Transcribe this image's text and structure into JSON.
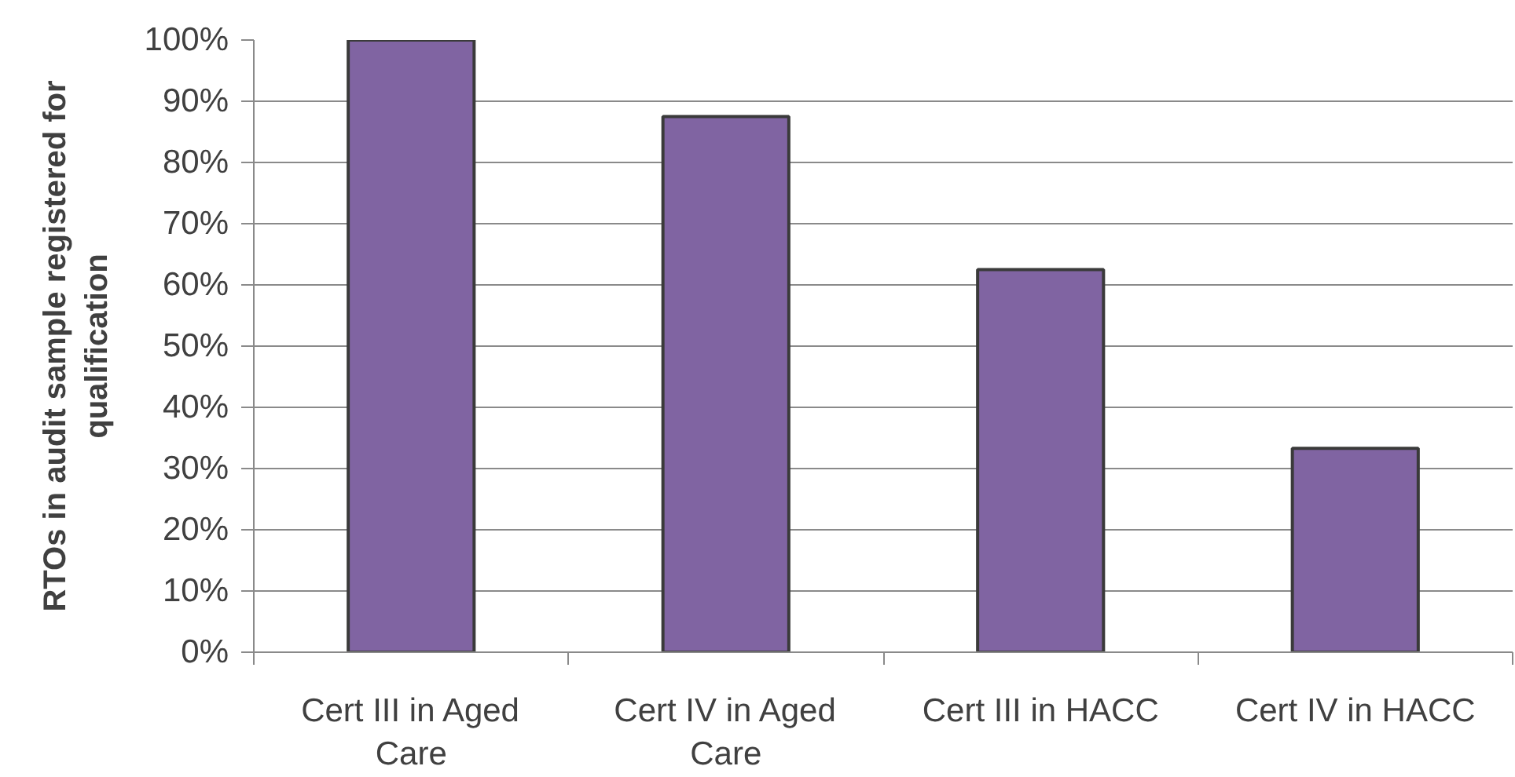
{
  "chart_data": {
    "type": "bar",
    "ylabel": "RTOs in audit sample registered for qualification",
    "categories": [
      "Cert III in Aged Care",
      "Cert IV in Aged Care",
      "Cert III in HACC",
      "Cert IV in HACC"
    ],
    "values": [
      100,
      87.5,
      62.5,
      33.3
    ],
    "color": "#8064a2",
    "ylim": [
      0,
      100
    ],
    "yticks": [
      {
        "value": 0,
        "label": "0%"
      },
      {
        "value": 10,
        "label": "10%"
      },
      {
        "value": 20,
        "label": "20%"
      },
      {
        "value": 30,
        "label": "30%"
      },
      {
        "value": 40,
        "label": "40%"
      },
      {
        "value": 50,
        "label": "50%"
      },
      {
        "value": 60,
        "label": "60%"
      },
      {
        "value": 70,
        "label": "70%"
      },
      {
        "value": 80,
        "label": "80%"
      },
      {
        "value": 90,
        "label": "90%"
      },
      {
        "value": 100,
        "label": "100%"
      }
    ],
    "grid": "y"
  }
}
